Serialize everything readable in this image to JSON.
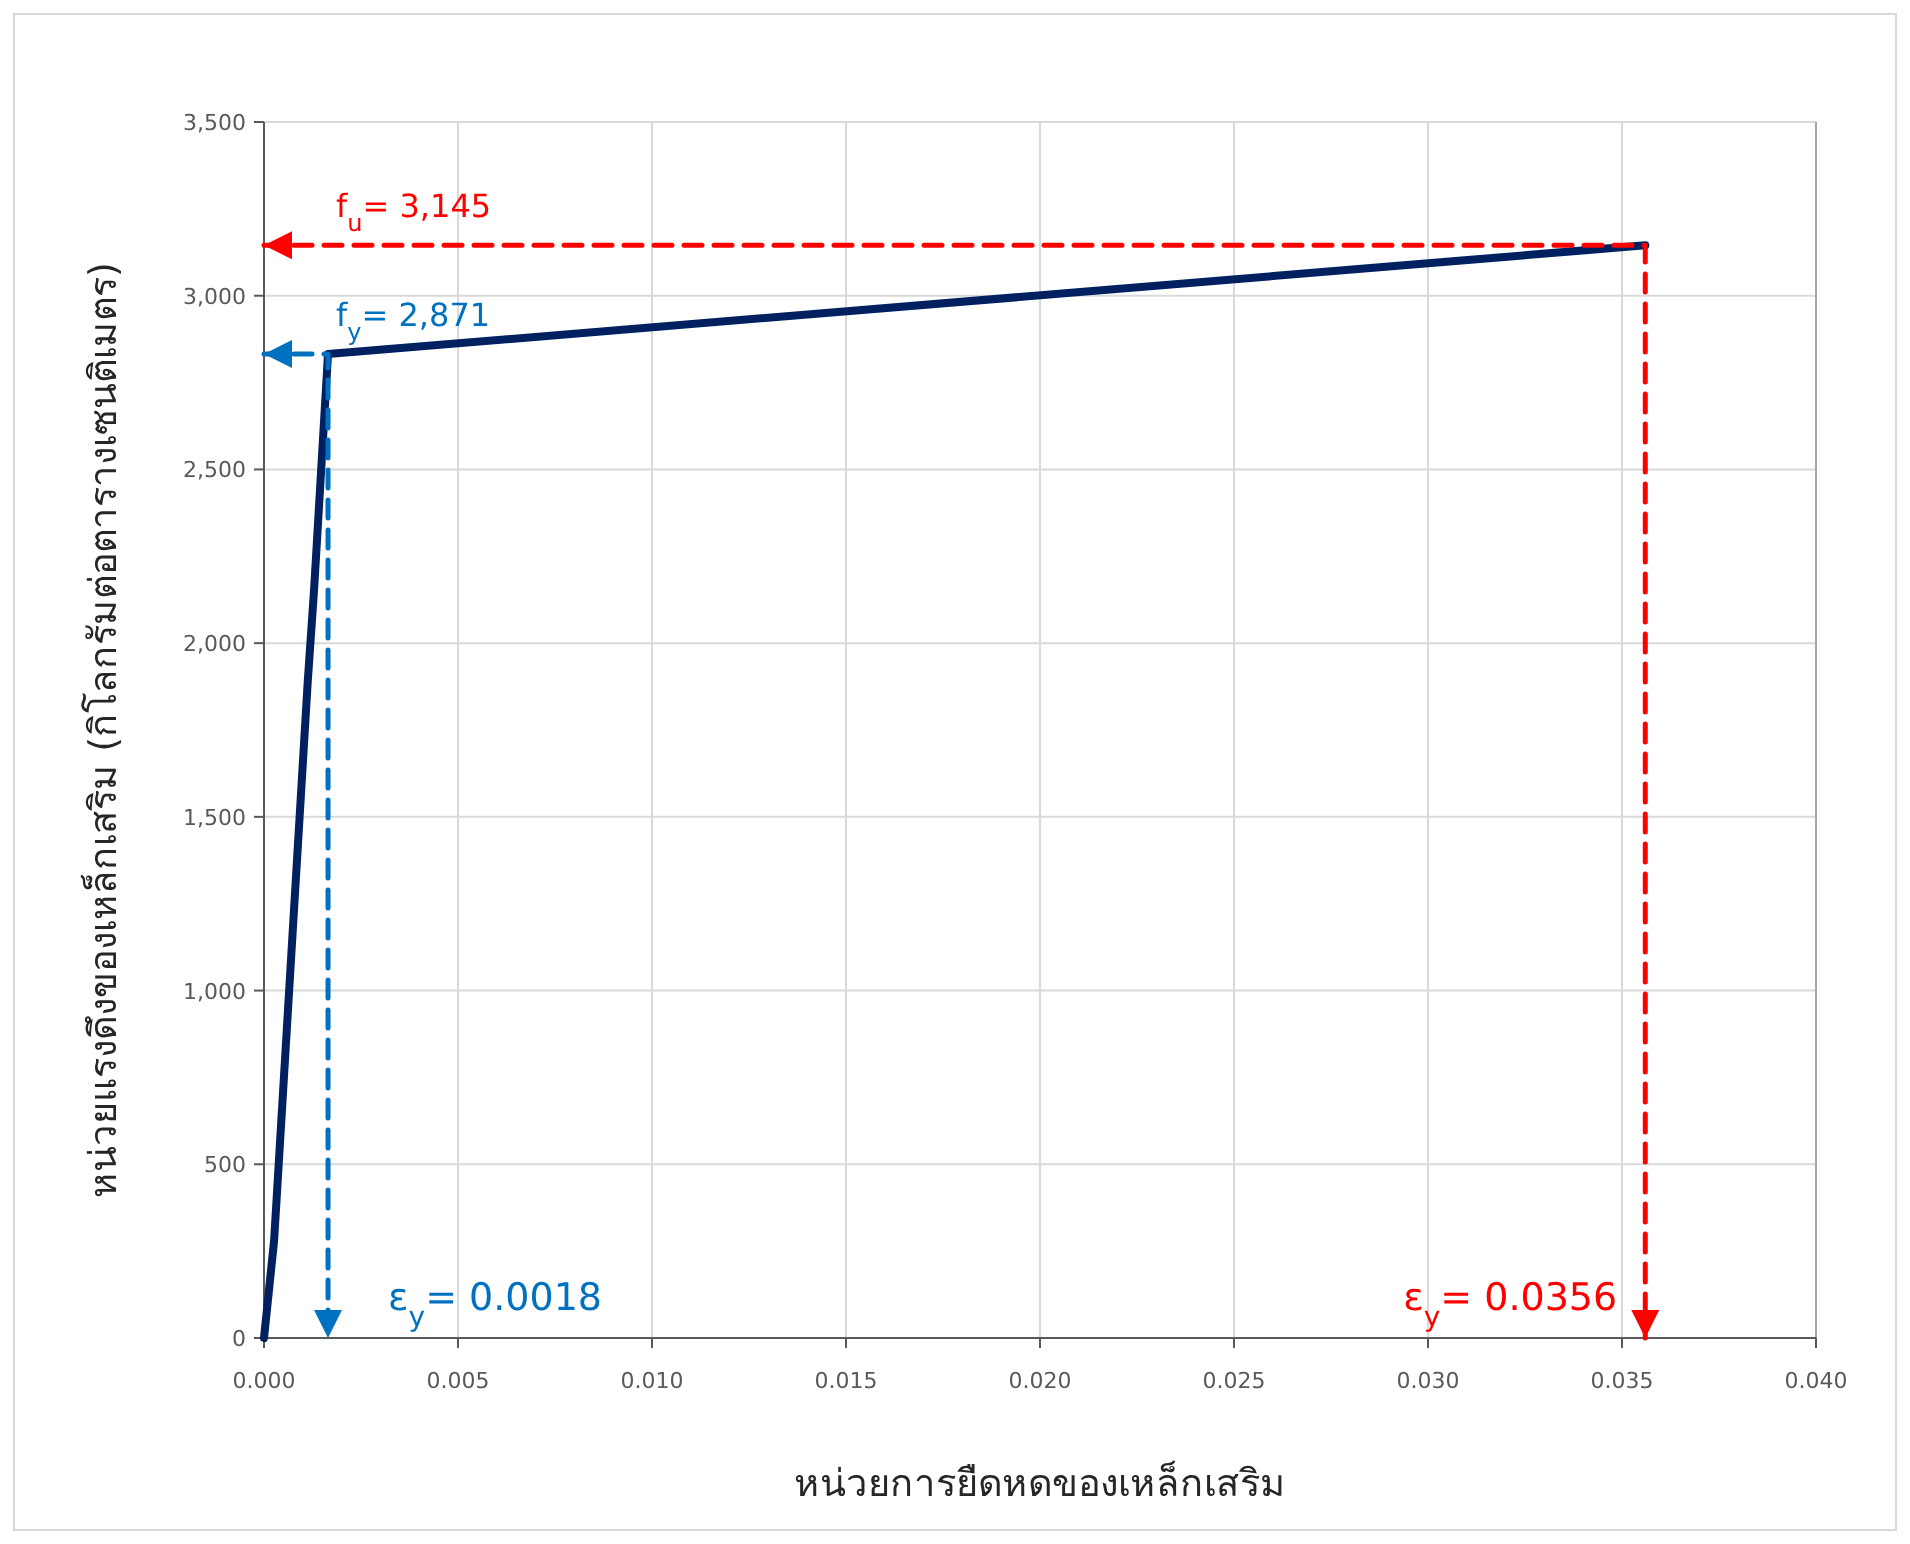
{
  "chart_data": {
    "type": "line",
    "xlabel": "หน่วยการยืดหดของเหล็กเสริม",
    "ylabel": "หน่วยแรงดึงของเหล็กเสริม (กิโลกรัมต่อตารางเซนติเมตร)",
    "xlim": [
      0,
      0.04
    ],
    "xticks": [
      {
        "value": 0,
        "label": "0.000"
      },
      {
        "value": 0.005,
        "label": "0.005"
      },
      {
        "value": 0.01,
        "label": "0.010"
      },
      {
        "value": 0.015,
        "label": "0.015"
      },
      {
        "value": 0.02,
        "label": "0.020"
      },
      {
        "value": 0.025,
        "label": "0.025"
      },
      {
        "value": 0.03,
        "label": "0.030"
      },
      {
        "value": 0.035,
        "label": "0.035"
      },
      {
        "value": 0.04,
        "label": "0.040"
      }
    ],
    "ylim": [
      0,
      3500
    ],
    "yticks": [
      0,
      500,
      {
        "value": 1000,
        "label": "1,000"
      },
      {
        "value": 1500,
        "label": "1,500"
      },
      {
        "value": 2000,
        "label": "2,000"
      },
      {
        "value": 2500,
        "label": "2,500"
      },
      {
        "value": 3000,
        "label": "3,000"
      },
      {
        "value": 3500,
        "label": "3,500"
      }
    ],
    "grid": true,
    "marker": "none",
    "series": [
      {
        "color": "#002060",
        "x": [
          0,
          0.00026,
          0.00113,
          0.00129,
          0.00165,
          0.0356
        ],
        "values": [
          0,
          280,
          1894,
          2153,
          2832,
          3145
        ]
      },
      {
        "color": "#0070c0",
        "line_style": "dashed",
        "x": [
          0,
          0.00165,
          0.00165
        ],
        "values": [
          2832,
          2832,
          0
        ]
      },
      {
        "color": "#ff0000",
        "line_style": "dashed",
        "x": [
          0,
          0.0356,
          0.0356
        ],
        "values": [
          3145,
          3145,
          0
        ]
      }
    ],
    "annotations": [
      {
        "text": "f$_{u}$= 3,145",
        "x": 0,
        "y": 3145
      },
      {
        "text": "f$_{y}$= 2,871",
        "x": 0,
        "y": 2832
      },
      {
        "text": "ε$_{y}$= 0.0018",
        "x": 0.00165,
        "y": 0
      },
      {
        "text": "ε$_{y}$= 0.0356",
        "x": 0.0356,
        "y": 0
      }
    ]
  }
}
